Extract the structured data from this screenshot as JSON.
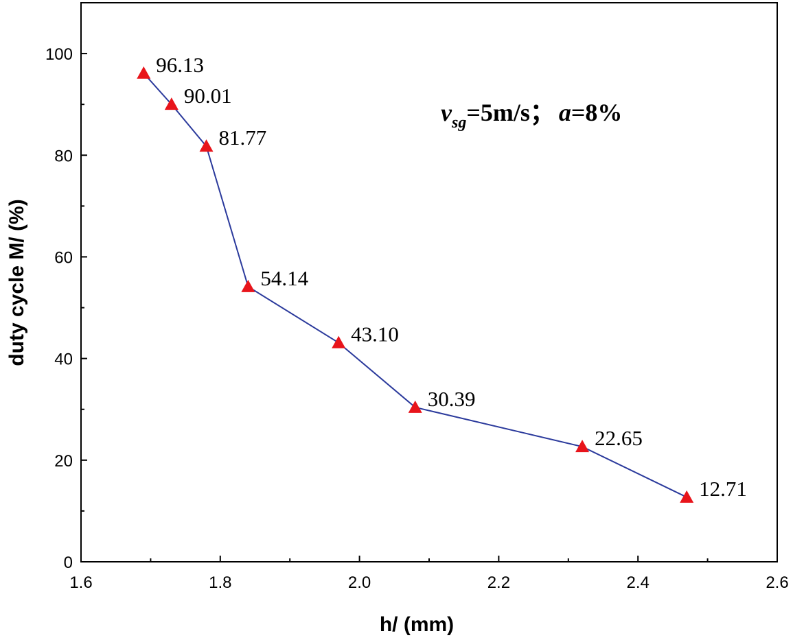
{
  "chart_data": {
    "type": "line",
    "title": "",
    "xlabel": "h/ (mm)",
    "ylabel": "duty cycle M/ (%)",
    "xlim": [
      1.6,
      2.6
    ],
    "ylim": [
      0,
      110
    ],
    "x_ticks": [
      "1.6",
      "1.8",
      "2.0",
      "2.2",
      "2.4",
      "2.6"
    ],
    "y_ticks": [
      "0",
      "20",
      "40",
      "60",
      "80",
      "100"
    ],
    "grid": false,
    "series": [
      {
        "name": "duty cycle",
        "color": "#2b3a9c",
        "marker": "triangle",
        "marker_color": "#e8141b",
        "x": [
          1.69,
          1.73,
          1.78,
          1.84,
          1.97,
          2.08,
          2.32,
          2.47
        ],
        "values": [
          96.13,
          90.01,
          81.77,
          54.14,
          43.1,
          30.39,
          22.65,
          12.71
        ],
        "labels": [
          "96.13",
          "90.01",
          "81.77",
          "54.14",
          "43.10",
          "30.39",
          "22.65",
          "12.71"
        ]
      }
    ],
    "annotation": {
      "var1": "v",
      "var1_sub": "sg",
      "eq1": "=5m/s",
      "sep": "；",
      "var2": "a",
      "eq2": "=8%"
    }
  }
}
